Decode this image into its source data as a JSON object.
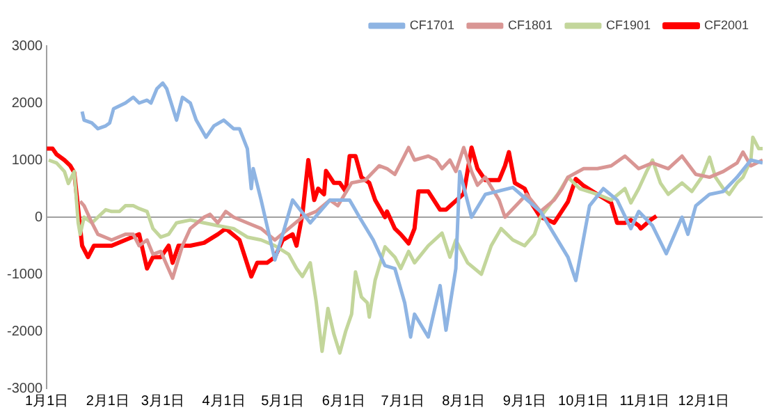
{
  "chart_data": {
    "type": "line",
    "legend": "top",
    "grid": false,
    "marker": "none",
    "line_style": "solid",
    "xlim": [
      "--01-01",
      "--12-31"
    ],
    "xticks": [
      {
        "value": "--01-01",
        "label": "1月1日"
      },
      {
        "value": "--02-01",
        "label": "2月1日"
      },
      {
        "value": "--03-01",
        "label": "3月1日"
      },
      {
        "value": "--04-01",
        "label": "4月1日"
      },
      {
        "value": "--05-01",
        "label": "5月1日"
      },
      {
        "value": "--06-01",
        "label": "6月1日"
      },
      {
        "value": "--07-01",
        "label": "7月1日"
      },
      {
        "value": "--08-01",
        "label": "8月1日"
      },
      {
        "value": "--09-01",
        "label": "9月1日"
      },
      {
        "value": "--10-01",
        "label": "10月1日"
      },
      {
        "value": "--11-01",
        "label": "11月1日"
      },
      {
        "value": "--12-01",
        "label": "12月1日"
      }
    ],
    "ref_lines": [
      {
        "axis": "y",
        "value": 0,
        "color": "#a0a0a0"
      }
    ],
    "ylim": [
      -3000,
      3000
    ],
    "yticks": [
      -3000,
      -2000,
      -1000,
      0,
      1000,
      2000,
      3000
    ],
    "series": [
      {
        "name": "CF1701",
        "color": "#8eb4e3",
        "x": [
          "--01-19",
          "--01-20",
          "--01-24",
          "--01-27",
          "--01-31",
          "--02-02",
          "--02-04",
          "--02-10",
          "--02-14",
          "--02-17",
          "--02-21",
          "--02-23",
          "--02-26",
          "--03-01",
          "--03-03",
          "--03-08",
          "--03-11",
          "--03-15",
          "--03-18",
          "--03-23",
          "--03-27",
          "--04-01",
          "--04-06",
          "--04-09",
          "--04-13",
          "--04-15",
          "--04-16",
          "--04-20",
          "--04-22",
          "--04-27",
          "--05-01",
          "--05-06",
          "--05-15",
          "--05-25",
          "--06-04",
          "--06-09",
          "--06-16",
          "--06-22",
          "--06-27",
          "--07-02",
          "--07-05",
          "--07-07",
          "--07-14",
          "--07-20",
          "--07-23",
          "--07-28",
          "--07-30",
          "--08-05",
          "--08-12",
          "--08-26",
          "--09-09",
          "--09-16",
          "--09-23",
          "--09-27",
          "--10-04",
          "--10-11",
          "--10-18",
          "--10-25",
          "--10-29",
          "--11-05",
          "--11-12",
          "--11-20",
          "--11-23",
          "--11-27",
          "--12-04",
          "--12-11",
          "--12-18",
          "--12-25",
          "--12-31"
        ],
        "values": [
          1850,
          1700,
          1650,
          1550,
          1600,
          1650,
          1900,
          2000,
          2100,
          2000,
          2050,
          2000,
          2250,
          2350,
          2250,
          1700,
          2100,
          2000,
          1700,
          1400,
          1600,
          1700,
          1550,
          1550,
          1200,
          500,
          850,
          300,
          0,
          -750,
          -300,
          300,
          -100,
          300,
          300,
          0,
          -400,
          -850,
          -900,
          -1500,
          -2100,
          -1700,
          -2100,
          -1200,
          -1980,
          -900,
          800,
          0,
          400,
          520,
          100,
          -300,
          -700,
          -1110,
          200,
          500,
          300,
          -200,
          100,
          -150,
          -640,
          0,
          -300,
          200,
          400,
          450,
          700,
          1000,
          950
        ]
      },
      {
        "name": "CF1801",
        "color": "#d99694",
        "x": [
          "--01-18",
          "--01-20",
          "--01-24",
          "--01-27",
          "--02-03",
          "--02-10",
          "--02-14",
          "--02-17",
          "--02-21",
          "--02-24",
          "--02-28",
          "--03-06",
          "--03-11",
          "--03-15",
          "--03-22",
          "--03-25",
          "--03-29",
          "--04-02",
          "--04-06",
          "--04-13",
          "--04-20",
          "--04-27",
          "--05-04",
          "--05-11",
          "--05-18",
          "--05-25",
          "--05-29",
          "--06-05",
          "--06-12",
          "--06-19",
          "--06-23",
          "--06-27",
          "--06-30",
          "--07-04",
          "--07-07",
          "--07-14",
          "--07-18",
          "--07-21",
          "--07-25",
          "--07-28",
          "--08-01",
          "--08-05",
          "--08-08",
          "--08-12",
          "--08-19",
          "--08-22",
          "--09-02",
          "--09-09",
          "--09-16",
          "--09-20",
          "--09-23",
          "--10-01",
          "--10-08",
          "--10-15",
          "--10-22",
          "--10-29",
          "--11-05",
          "--11-13",
          "--11-20",
          "--11-27",
          "--12-04",
          "--12-11",
          "--12-18",
          "--12-21",
          "--12-25",
          "--12-31"
        ],
        "values": [
          280,
          200,
          -100,
          -300,
          -400,
          -300,
          -300,
          -500,
          -400,
          -650,
          -600,
          -1070,
          -500,
          -200,
          0,
          50,
          -100,
          100,
          0,
          -100,
          -200,
          -400,
          -200,
          0,
          100,
          300,
          200,
          600,
          650,
          900,
          850,
          750,
          950,
          1220,
          1000,
          1070,
          1000,
          850,
          1000,
          800,
          1220,
          800,
          560,
          700,
          300,
          0,
          400,
          100,
          300,
          500,
          700,
          850,
          850,
          900,
          1070,
          850,
          950,
          850,
          1070,
          750,
          700,
          800,
          950,
          1140,
          900,
          1000
        ]
      },
      {
        "name": "CF1901",
        "color": "#c3d69b",
        "x": [
          "--01-02",
          "--01-06",
          "--01-10",
          "--01-12",
          "--01-15",
          "--01-17",
          "--01-18",
          "--01-20",
          "--01-24",
          "--01-27",
          "--01-31",
          "--02-03",
          "--02-07",
          "--02-10",
          "--02-14",
          "--02-17",
          "--02-21",
          "--02-24",
          "--02-28",
          "--03-04",
          "--03-08",
          "--03-15",
          "--03-22",
          "--03-29",
          "--04-06",
          "--04-13",
          "--04-20",
          "--04-27",
          "--05-04",
          "--05-08",
          "--05-11",
          "--05-15",
          "--05-18",
          "--05-21",
          "--05-24",
          "--05-27",
          "--05-30",
          "--06-02",
          "--06-05",
          "--06-07",
          "--06-10",
          "--06-13",
          "--06-14",
          "--06-17",
          "--06-22",
          "--06-27",
          "--06-30",
          "--07-04",
          "--07-07",
          "--07-14",
          "--07-21",
          "--07-25",
          "--07-28",
          "--08-03",
          "--08-10",
          "--08-15",
          "--08-20",
          "--08-26",
          "--09-01",
          "--09-06",
          "--09-09",
          "--09-18",
          "--09-23",
          "--09-29",
          "--10-08",
          "--10-15",
          "--10-22",
          "--10-25",
          "--10-29",
          "--11-02",
          "--11-05",
          "--11-09",
          "--11-13",
          "--11-20",
          "--11-25",
          "--11-30",
          "--12-04",
          "--12-07",
          "--12-11",
          "--12-14",
          "--12-18",
          "--12-21",
          "--12-25",
          "--12-26",
          "--12-29",
          "--12-31"
        ],
        "values": [
          1000,
          950,
          800,
          590,
          800,
          -100,
          -300,
          0,
          -100,
          0,
          130,
          100,
          100,
          200,
          200,
          150,
          100,
          -200,
          -350,
          -300,
          -100,
          -50,
          -100,
          -150,
          -200,
          -350,
          -400,
          -500,
          -650,
          -900,
          -1040,
          -800,
          -1480,
          -2350,
          -1600,
          -2050,
          -2380,
          -2000,
          -1700,
          -960,
          -1400,
          -1500,
          -1750,
          -1100,
          -520,
          -700,
          -900,
          -600,
          -800,
          -500,
          -280,
          -700,
          -400,
          -800,
          -1000,
          -500,
          -200,
          -400,
          -500,
          -300,
          0,
          410,
          700,
          500,
          400,
          300,
          500,
          250,
          500,
          800,
          1000,
          600,
          400,
          600,
          450,
          700,
          1050,
          700,
          500,
          400,
          600,
          700,
          1000,
          1400,
          1200,
          1200
        ]
      },
      {
        "name": "CF2001",
        "color": "#ff0000",
        "x": [
          "--01-01",
          "--01-04",
          "--01-06",
          "--01-10",
          "--01-13",
          "--01-15",
          "--01-19",
          "--01-22",
          "--01-25",
          "--02-03",
          "--02-10",
          "--02-17",
          "--02-21",
          "--02-24",
          "--02-28",
          "--03-04",
          "--03-06",
          "--03-09",
          "--03-15",
          "--03-22",
          "--03-29",
          "--04-02",
          "--04-09",
          "--04-15",
          "--04-18",
          "--04-23",
          "--04-27",
          "--05-01",
          "--05-06",
          "--05-08",
          "--05-11",
          "--05-14",
          "--05-17",
          "--05-19",
          "--05-22",
          "--05-23",
          "--05-27",
          "--05-30",
          "--06-02",
          "--06-04",
          "--06-07",
          "--06-10",
          "--06-14",
          "--06-17",
          "--06-22",
          "--06-23",
          "--06-27",
          "--06-30",
          "--07-04",
          "--07-07",
          "--07-09",
          "--07-14",
          "--07-20",
          "--07-23",
          "--08-01",
          "--08-05",
          "--08-08",
          "--08-12",
          "--08-19",
          "--08-22",
          "--08-24",
          "--08-27",
          "--09-01",
          "--09-04",
          "--09-09",
          "--09-13",
          "--09-16",
          "--09-23",
          "--09-27",
          "--10-01",
          "--10-08",
          "--10-15",
          "--10-18",
          "--10-22",
          "--10-25",
          "--10-29",
          "--10-30",
          "--11-04",
          "--11-07"
        ],
        "values": [
          1200,
          1200,
          1100,
          1000,
          900,
          780,
          -500,
          -700,
          -500,
          -500,
          -400,
          -300,
          -900,
          -700,
          -700,
          -500,
          -800,
          -500,
          -500,
          -450,
          -300,
          -200,
          -400,
          -1040,
          -800,
          -800,
          -700,
          -400,
          -300,
          -500,
          50,
          1000,
          300,
          500,
          400,
          810,
          600,
          600,
          450,
          1070,
          1070,
          700,
          600,
          300,
          0,
          100,
          -200,
          -300,
          -460,
          -200,
          450,
          450,
          130,
          130,
          410,
          1220,
          850,
          650,
          650,
          900,
          1140,
          600,
          500,
          270,
          0,
          -50,
          -100,
          270,
          670,
          550,
          400,
          250,
          -100,
          -100,
          -50,
          -150,
          -200,
          -50,
          20
        ]
      }
    ]
  }
}
